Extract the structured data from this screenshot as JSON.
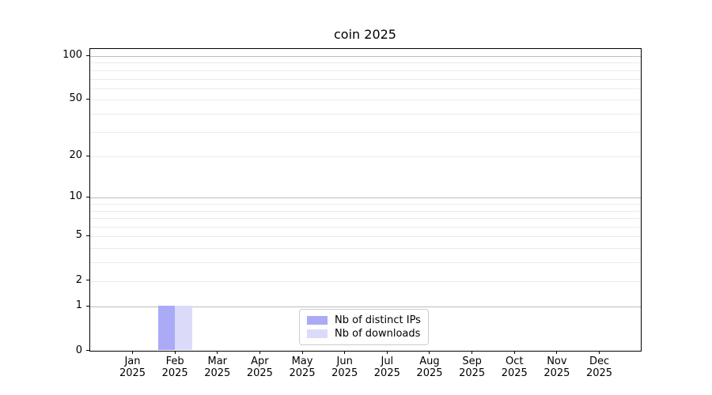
{
  "chart_data": {
    "type": "bar",
    "title": "coin 2025",
    "categories": [
      "Jan",
      "Feb",
      "Mar",
      "Apr",
      "May",
      "Jun",
      "Jul",
      "Aug",
      "Sep",
      "Oct",
      "Nov",
      "Dec"
    ],
    "year": "2025",
    "series": [
      {
        "name": "Nb of distinct IPs",
        "color": "#aaaaf6",
        "values": [
          0,
          1,
          0,
          0,
          0,
          0,
          0,
          0,
          0,
          0,
          0,
          0
        ]
      },
      {
        "name": "Nb of downloads",
        "color": "#dbdbf9",
        "values": [
          0,
          1,
          0,
          0,
          0,
          0,
          0,
          0,
          0,
          0,
          0,
          0
        ]
      }
    ],
    "yscale": "log1p",
    "yticks": [
      0,
      1,
      2,
      5,
      10,
      20,
      50,
      100
    ],
    "ylim": [
      0,
      112
    ],
    "grid": true,
    "legend_position": "lower-center-inside",
    "colors": {
      "major_grid": "#bdbdbd",
      "minor_grid": "#ebebeb",
      "axis": "#000000"
    }
  }
}
